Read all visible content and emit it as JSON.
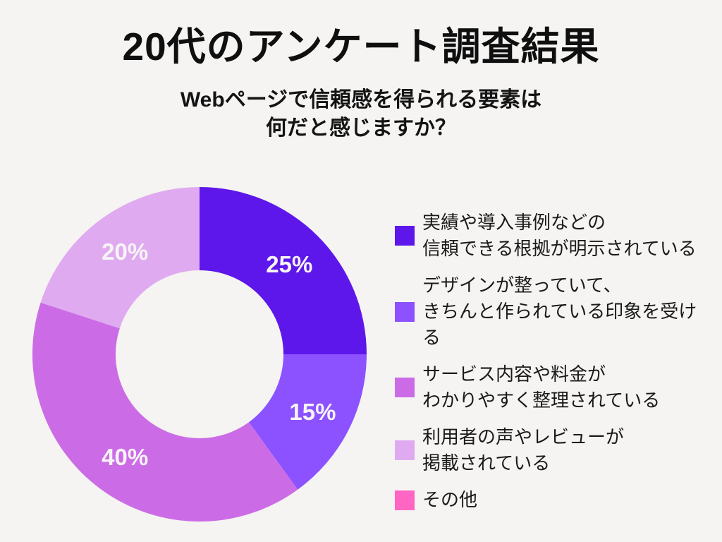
{
  "page": {
    "title": "20代のアンケート調査結果",
    "subtitle_line1": "Webページで信頼感を得られる要素は",
    "subtitle_line2": "何だと感じますか？",
    "background_color": "#F5F4F2"
  },
  "chart_data": {
    "type": "pie",
    "variant": "donut",
    "title": "20代のアンケート調査結果",
    "subtitle": "Webページで信頼感を得られる要素は何だと感じますか？",
    "unit": "%",
    "start_angle_deg": 0,
    "clockwise": true,
    "inner_radius_ratio": 0.5,
    "data_label_color": "#F7F4F6",
    "legend_position": "right",
    "segments": [
      {
        "name": "実績や導入事例などの信頼できる根拠が明示されている",
        "value": 25,
        "color": "#5E17EB",
        "data_label": "25%"
      },
      {
        "name": "デザインが整っていて、きちんと作られている印象を受ける",
        "value": 15,
        "color": "#8C52FF",
        "data_label": "15%"
      },
      {
        "name": "サービス内容や料金がわかりやすく整理されている",
        "value": 40,
        "color": "#CB6CE6",
        "data_label": "40%"
      },
      {
        "name": "利用者の声やレビューが掲載されている",
        "value": 20,
        "color": "#E0AAF0",
        "data_label": "20%"
      },
      {
        "name": "その他",
        "value": 0,
        "color": "#FF66C4",
        "data_label": ""
      }
    ],
    "legend": [
      {
        "lines": [
          "実績や導入事例などの",
          "信頼できる根拠が明示されている"
        ],
        "color": "#5E17EB"
      },
      {
        "lines": [
          "デザインが整っていて、",
          "きちんと作られている印象を受ける"
        ],
        "color": "#8C52FF"
      },
      {
        "lines": [
          "サービス内容や料金が",
          "わかりやすく整理されている"
        ],
        "color": "#CB6CE6"
      },
      {
        "lines": [
          "利用者の声やレビューが",
          "掲載されている"
        ],
        "color": "#E0AAF0"
      },
      {
        "lines": [
          "その他"
        ],
        "color": "#FF66C4"
      }
    ]
  }
}
